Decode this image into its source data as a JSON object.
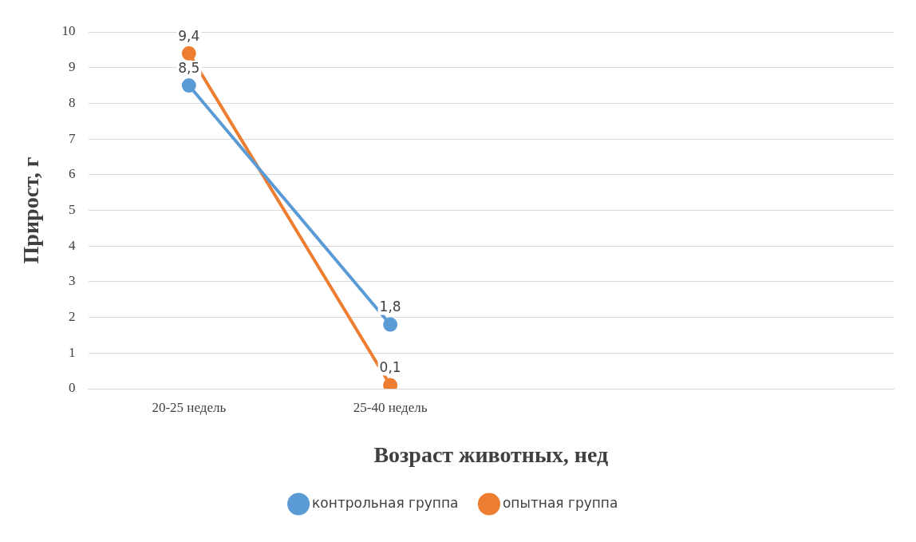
{
  "chart_data": {
    "type": "line",
    "xlabel": "Возраст животных, нед",
    "ylabel": "Прирост, г",
    "categories": [
      "20-25 недель",
      "25-40 недель",
      null,
      null
    ],
    "series": [
      {
        "name": "контрольная группа",
        "color": "#5b9bd5",
        "values": [
          8.5,
          1.8,
          null,
          null
        ],
        "value_labels": [
          "8,5",
          "1,8",
          null,
          null
        ]
      },
      {
        "name": "опытная группа",
        "color": "#ed7d31",
        "values": [
          9.4,
          0.1,
          null,
          null
        ],
        "value_labels": [
          "9,4",
          "0,1",
          null,
          null
        ]
      }
    ],
    "ylim": [
      0,
      10
    ],
    "yticks": [
      0,
      1,
      2,
      3,
      4,
      5,
      6,
      7,
      8,
      9,
      10
    ],
    "grid": "y",
    "legend": "bottom",
    "marker": "circle",
    "line_style": "solid"
  }
}
